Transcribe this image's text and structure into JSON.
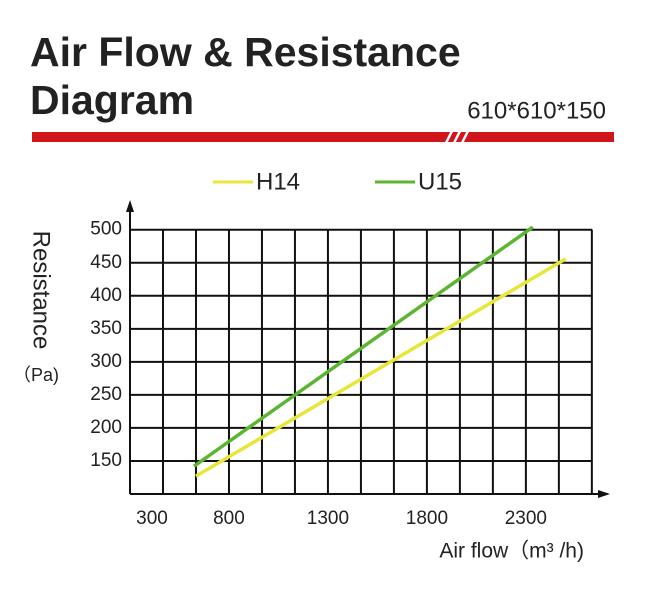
{
  "chart_data": {
    "type": "line",
    "title": "Air Flow & Resistance Diagram",
    "subtitle": "610*610*150",
    "x_label": "Air flow（m³ /h)",
    "y_label": "Resistance",
    "y_unit": "（Pa)",
    "series": [
      {
        "name": "H14",
        "color": "#e8e63c",
        "x": [
          633,
          2502
        ],
        "values": [
          127,
          456
        ]
      },
      {
        "name": "U15",
        "color": "#5cb531",
        "x": [
          623,
          2335
        ],
        "values": [
          142,
          504
        ]
      }
    ],
    "xlim": [
      300,
      2725
    ],
    "xticks": [
      300,
      800,
      1300,
      1800,
      2300
    ],
    "ylim": [
      100,
      545
    ],
    "yticks": [
      150,
      200,
      250,
      300,
      350,
      400,
      450,
      500
    ],
    "grid": true
  }
}
